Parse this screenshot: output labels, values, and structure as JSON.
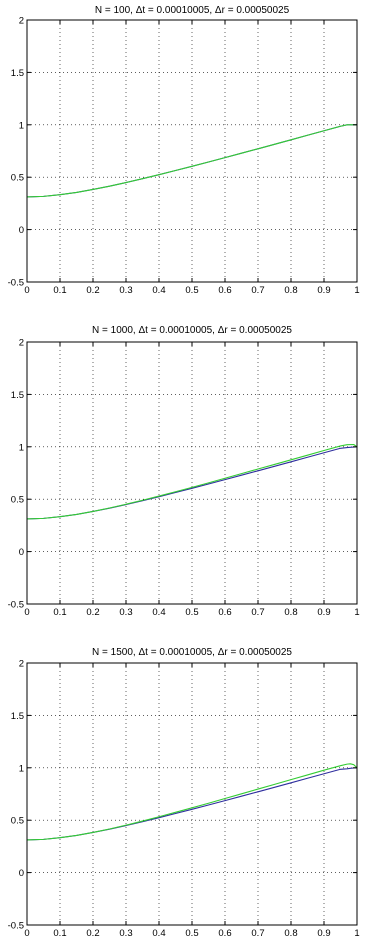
{
  "chart_data": [
    {
      "type": "line",
      "title": "N = 100, Δt = 0.00010005, Δr = 0.00050025",
      "xlabel": "",
      "ylabel": "",
      "xlim": [
        0,
        1
      ],
      "ylim": [
        -0.5,
        2
      ],
      "xticks": [
        "0",
        "0.1",
        "0.2",
        "0.3",
        "0.4",
        "0.5",
        "0.6",
        "0.7",
        "0.8",
        "0.9",
        "1"
      ],
      "yticks": [
        "-0.5",
        "0",
        "0.5",
        "1",
        "1.5",
        "2"
      ],
      "grid": true,
      "x": [
        0,
        0.05,
        0.1,
        0.15,
        0.2,
        0.25,
        0.3,
        0.35,
        0.4,
        0.45,
        0.5,
        0.55,
        0.6,
        0.65,
        0.7,
        0.75,
        0.8,
        0.85,
        0.9,
        0.95,
        0.97,
        0.99,
        1
      ],
      "series": [
        {
          "color": "#2e2e9e",
          "values": [
            0.312,
            0.317,
            0.333,
            0.355,
            0.383,
            0.414,
            0.449,
            0.486,
            0.524,
            0.564,
            0.604,
            0.645,
            0.687,
            0.729,
            0.771,
            0.814,
            0.857,
            0.9,
            0.943,
            0.986,
            1.0,
            1.0,
            1.0
          ]
        },
        {
          "color": "#33cc33",
          "values": [
            0.312,
            0.317,
            0.333,
            0.355,
            0.383,
            0.414,
            0.449,
            0.486,
            0.524,
            0.564,
            0.604,
            0.645,
            0.687,
            0.729,
            0.771,
            0.814,
            0.857,
            0.9,
            0.943,
            0.986,
            1.0,
            1.0,
            1.0
          ]
        }
      ]
    },
    {
      "type": "line",
      "title": "N = 1000, Δt = 0.00010005, Δr = 0.00050025",
      "xlabel": "",
      "ylabel": "",
      "xlim": [
        0,
        1
      ],
      "ylim": [
        -0.5,
        2
      ],
      "xticks": [
        "0",
        "0.1",
        "0.2",
        "0.3",
        "0.4",
        "0.5",
        "0.6",
        "0.7",
        "0.8",
        "0.9",
        "1"
      ],
      "yticks": [
        "-0.5",
        "0",
        "0.5",
        "1",
        "1.5",
        "2"
      ],
      "grid": true,
      "x": [
        0,
        0.05,
        0.1,
        0.15,
        0.2,
        0.25,
        0.3,
        0.35,
        0.4,
        0.45,
        0.5,
        0.55,
        0.6,
        0.65,
        0.7,
        0.75,
        0.8,
        0.85,
        0.9,
        0.95,
        0.97,
        0.99,
        1
      ],
      "series": [
        {
          "color": "#2e2e9e",
          "values": [
            0.312,
            0.317,
            0.333,
            0.355,
            0.383,
            0.414,
            0.449,
            0.486,
            0.524,
            0.564,
            0.604,
            0.645,
            0.687,
            0.729,
            0.771,
            0.814,
            0.857,
            0.9,
            0.943,
            0.986,
            0.993,
            0.997,
            1.0
          ]
        },
        {
          "color": "#33cc33",
          "values": [
            0.312,
            0.317,
            0.333,
            0.355,
            0.383,
            0.416,
            0.452,
            0.49,
            0.53,
            0.571,
            0.613,
            0.656,
            0.7,
            0.744,
            0.788,
            0.832,
            0.876,
            0.92,
            0.965,
            1.008,
            1.02,
            1.022,
            1.0
          ]
        }
      ]
    },
    {
      "type": "line",
      "title": "N = 1500, Δt = 0.00010005, Δr = 0.00050025",
      "xlabel": "",
      "ylabel": "",
      "xlim": [
        0,
        1
      ],
      "ylim": [
        -0.5,
        2
      ],
      "xticks": [
        "0",
        "0.1",
        "0.2",
        "0.3",
        "0.4",
        "0.5",
        "0.6",
        "0.7",
        "0.8",
        "0.9",
        "1"
      ],
      "yticks": [
        "-0.5",
        "0",
        "0.5",
        "1",
        "1.5",
        "2"
      ],
      "grid": true,
      "x": [
        0,
        0.05,
        0.1,
        0.15,
        0.2,
        0.25,
        0.3,
        0.35,
        0.4,
        0.45,
        0.5,
        0.55,
        0.6,
        0.65,
        0.7,
        0.75,
        0.8,
        0.85,
        0.9,
        0.95,
        0.97,
        0.98,
        0.99,
        1
      ],
      "series": [
        {
          "color": "#2e2e9e",
          "values": [
            0.312,
            0.317,
            0.333,
            0.355,
            0.383,
            0.414,
            0.449,
            0.486,
            0.524,
            0.564,
            0.604,
            0.645,
            0.687,
            0.729,
            0.771,
            0.814,
            0.857,
            0.9,
            0.943,
            0.986,
            0.99,
            0.995,
            0.998,
            1.0
          ]
        },
        {
          "color": "#33cc33",
          "values": [
            0.312,
            0.317,
            0.333,
            0.355,
            0.383,
            0.416,
            0.453,
            0.492,
            0.533,
            0.575,
            0.618,
            0.662,
            0.707,
            0.752,
            0.797,
            0.842,
            0.887,
            0.932,
            0.977,
            1.02,
            1.035,
            1.038,
            1.03,
            1.0
          ]
        }
      ]
    }
  ]
}
